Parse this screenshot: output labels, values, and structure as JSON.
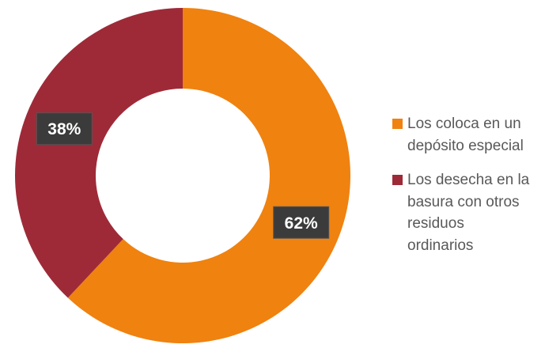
{
  "chart_data": {
    "type": "donut",
    "categories": [
      "Los coloca en un depósito especial",
      "Los desecha en la basura con otros residuos ordinarios"
    ],
    "values": [
      62,
      38
    ],
    "value_labels": [
      "62%",
      "38%"
    ],
    "colors": [
      "#f0820f",
      "#9e2a38"
    ],
    "legend": "right"
  }
}
